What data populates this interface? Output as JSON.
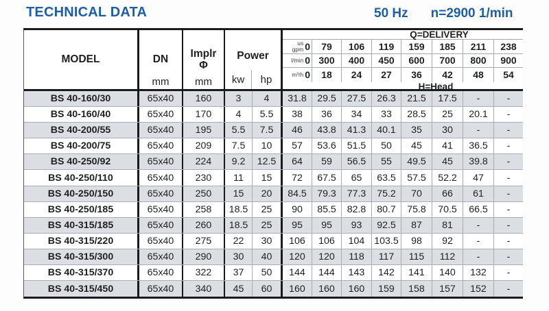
{
  "page_title": "TECHNICAL DATA",
  "frequency": "50 Hz",
  "rotation_speed": "n=2900 1/min",
  "colors": {
    "accent_blue": "#1d5fa7",
    "stripe": "#dbdfe4",
    "grid_line": "#a6abb1",
    "border_black": "#1a1a1a"
  },
  "table": {
    "headers": {
      "model": {
        "label": "MODEL",
        "unit": ""
      },
      "dn": {
        "label": "DN",
        "unit": "mm"
      },
      "impeller": {
        "line1": "Implr",
        "line2": "Φ",
        "unit": "mm"
      },
      "power": {
        "label": "Power",
        "unit_kw": "kw",
        "unit_hp": "hp"
      }
    },
    "delivery": {
      "title": "Q=DELIVERY",
      "head_label": "H=Head",
      "unit_rows": [
        {
          "unit_lines": [
            "us",
            "gpm"
          ],
          "values": [
            "0",
            "79",
            "106",
            "119",
            "159",
            "185",
            "211",
            "238"
          ]
        },
        {
          "unit_lines": [
            "l/min"
          ],
          "values": [
            "0",
            "300",
            "400",
            "450",
            "600",
            "700",
            "800",
            "900"
          ]
        },
        {
          "unit_lines": [
            "m³/h"
          ],
          "values": [
            "0",
            "18",
            "24",
            "27",
            "36",
            "42",
            "48",
            "54"
          ]
        }
      ]
    },
    "rows": [
      {
        "model": "BS 40-160/30",
        "dn": "65x40",
        "impeller": "160",
        "kw": "3",
        "hp": "4",
        "head": [
          "31.8",
          "29.5",
          "27.5",
          "26.3",
          "21.5",
          "17.5",
          "-",
          "-"
        ]
      },
      {
        "model": "BS 40-160/40",
        "dn": "65x40",
        "impeller": "170",
        "kw": "4",
        "hp": "5.5",
        "head": [
          "38",
          "36",
          "34",
          "33",
          "28.5",
          "25",
          "20.1",
          "-"
        ]
      },
      {
        "model": "BS 40-200/55",
        "dn": "65x40",
        "impeller": "195",
        "kw": "5.5",
        "hp": "7.5",
        "head": [
          "46",
          "43.8",
          "41.3",
          "40.1",
          "35",
          "30",
          "-",
          "-"
        ]
      },
      {
        "model": "BS 40-200/75",
        "dn": "65x40",
        "impeller": "209",
        "kw": "7.5",
        "hp": "10",
        "head": [
          "57",
          "53.6",
          "51.5",
          "50",
          "45",
          "41",
          "36.5",
          "-"
        ]
      },
      {
        "model": "BS 40-250/92",
        "dn": "65x40",
        "impeller": "224",
        "kw": "9.2",
        "hp": "12.5",
        "head": [
          "64",
          "59",
          "56.5",
          "55",
          "49.5",
          "45",
          "39.8",
          "-"
        ]
      },
      {
        "model": "BS 40-250/110",
        "dn": "65x40",
        "impeller": "230",
        "kw": "11",
        "hp": "15",
        "head": [
          "72",
          "67.5",
          "65",
          "63.5",
          "57.5",
          "52.2",
          "47",
          "-"
        ]
      },
      {
        "model": "BS 40-250/150",
        "dn": "65x40",
        "impeller": "250",
        "kw": "15",
        "hp": "20",
        "head": [
          "84.5",
          "79.3",
          "77.3",
          "75.2",
          "70",
          "66",
          "61",
          "-"
        ]
      },
      {
        "model": "BS 40-250/185",
        "dn": "65x40",
        "impeller": "258",
        "kw": "18.5",
        "hp": "25",
        "head": [
          "90",
          "85.5",
          "82.8",
          "80.7",
          "75.8",
          "70.5",
          "66.5",
          "-"
        ]
      },
      {
        "model": "BS 40-315/185",
        "dn": "65x40",
        "impeller": "260",
        "kw": "18.5",
        "hp": "25",
        "head": [
          "95",
          "95",
          "93",
          "92.5",
          "87",
          "81",
          "-",
          "-"
        ]
      },
      {
        "model": "BS 40-315/220",
        "dn": "65x40",
        "impeller": "275",
        "kw": "22",
        "hp": "30",
        "head": [
          "106",
          "106",
          "104",
          "103.5",
          "98",
          "92",
          "-",
          "-"
        ]
      },
      {
        "model": "BS 40-315/300",
        "dn": "65x40",
        "impeller": "290",
        "kw": "30",
        "hp": "40",
        "head": [
          "120",
          "120",
          "118",
          "117",
          "115",
          "112",
          "-",
          "-"
        ]
      },
      {
        "model": "BS 40-315/370",
        "dn": "65x40",
        "impeller": "322",
        "kw": "37",
        "hp": "50",
        "head": [
          "144",
          "144",
          "143",
          "142",
          "141",
          "140",
          "132",
          "-"
        ]
      },
      {
        "model": "BS 40-315/450",
        "dn": "65x40",
        "impeller": "340",
        "kw": "45",
        "hp": "60",
        "head": [
          "160",
          "160",
          "160",
          "159",
          "158",
          "157",
          "152",
          "-"
        ]
      }
    ]
  }
}
